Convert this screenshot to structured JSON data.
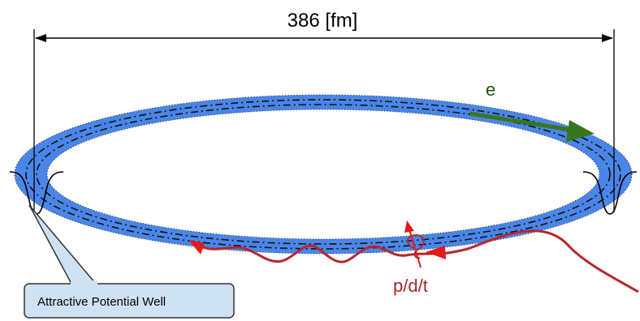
{
  "diagram": {
    "dimension_label": "386 [fm]",
    "electron_label": "e",
    "particle_label": "p/d/t",
    "callout_label": "Attractive Potential Well"
  },
  "colors": {
    "ring_fill": "#4a86e8",
    "electron_arrow": "#38761d",
    "electron_label": "#274e13",
    "particle_path": "#b7262d",
    "particle_arrow": "#e3191c",
    "callout_fill": "#cfe2f3",
    "callout_border": "#333333"
  }
}
